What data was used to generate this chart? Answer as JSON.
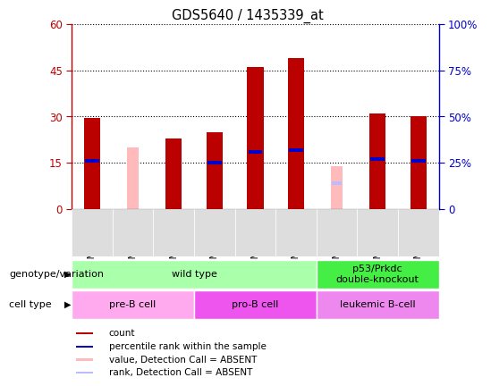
{
  "title": "GDS5640 / 1435339_at",
  "samples": [
    "GSM1359549",
    "GSM1359550",
    "GSM1359551",
    "GSM1359555",
    "GSM1359556",
    "GSM1359557",
    "GSM1359552",
    "GSM1359553",
    "GSM1359554"
  ],
  "count_values": [
    29.5,
    0,
    23,
    25,
    46,
    49,
    0,
    31,
    30
  ],
  "percentile_values": [
    27,
    0,
    0,
    26,
    32,
    33,
    0,
    28,
    27
  ],
  "absent_value_values": [
    0,
    20,
    0,
    0,
    0,
    0,
    14,
    0,
    0
  ],
  "absent_rank_values": [
    0,
    0,
    0,
    0,
    0,
    0,
    15,
    0,
    0
  ],
  "count_color": "#bb0000",
  "percentile_color": "#0000cc",
  "absent_value_color": "#ffbbbb",
  "absent_rank_color": "#bbbbff",
  "ylim_left": [
    0,
    60
  ],
  "ylim_right": [
    0,
    100
  ],
  "yticks_left": [
    0,
    15,
    30,
    45,
    60
  ],
  "ytick_labels_left": [
    "0",
    "15",
    "30",
    "45",
    "60"
  ],
  "yticks_right": [
    0,
    25,
    50,
    75,
    100
  ],
  "ytick_labels_right": [
    "0",
    "25%",
    "50%",
    "75%",
    "100%"
  ],
  "genotype_groups": [
    {
      "label": "wild type",
      "start": 0,
      "end": 6,
      "color": "#aaffaa"
    },
    {
      "label": "p53/Prkdc\ndouble-knockout",
      "start": 6,
      "end": 9,
      "color": "#44ee44"
    }
  ],
  "cell_type_groups": [
    {
      "label": "pre-B cell",
      "start": 0,
      "end": 3,
      "color": "#ffaaee"
    },
    {
      "label": "pro-B cell",
      "start": 3,
      "end": 6,
      "color": "#ee55ee"
    },
    {
      "label": "leukemic B-cell",
      "start": 6,
      "end": 9,
      "color": "#ee88ee"
    }
  ],
  "bar_width": 0.4,
  "absent_bar_width": 0.3,
  "legend_items": [
    {
      "label": "count",
      "color": "#bb0000"
    },
    {
      "label": "percentile rank within the sample",
      "color": "#0000cc"
    },
    {
      "label": "value, Detection Call = ABSENT",
      "color": "#ffbbbb"
    },
    {
      "label": "rank, Detection Call = ABSENT",
      "color": "#bbbbff"
    }
  ],
  "bg_color": "#e8e8e8"
}
